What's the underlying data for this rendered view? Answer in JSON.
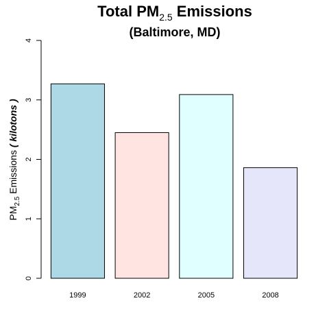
{
  "chart_data": {
    "type": "bar",
    "title": {
      "prefix": "Total PM",
      "subscript": "2.5",
      "suffix": " Emissions"
    },
    "subtitle": "(Baltimore, MD)",
    "ylabel": {
      "prefix": "PM",
      "subscript": "2.5",
      "middle": " Emissions ",
      "unit": "( kilotons )"
    },
    "xlabel": "",
    "categories": [
      "1999",
      "2002",
      "2005",
      "2008"
    ],
    "values": [
      3.27,
      2.45,
      3.09,
      1.86
    ],
    "colors": [
      "#add8e6",
      "#ffe4e1",
      "#e0ffff",
      "#e6e6fa"
    ],
    "ylim": [
      0,
      4
    ],
    "yticks": [
      "0",
      "1",
      "2",
      "3",
      "4"
    ],
    "grid": false,
    "legend": "none"
  }
}
